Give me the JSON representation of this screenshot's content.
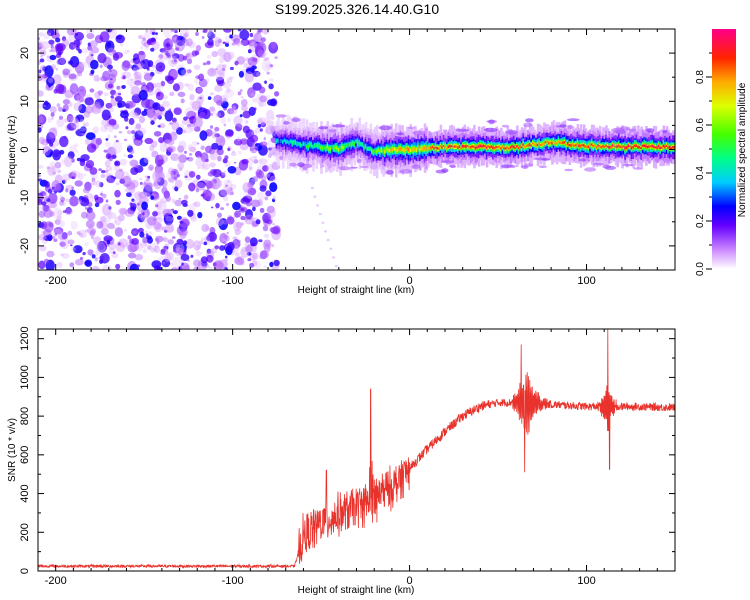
{
  "title": "S199.2025.326.14.40.G10",
  "chart_data": [
    {
      "type": "heatmap",
      "name": "spectrogram",
      "xlabel": "Height of straight line (km)",
      "ylabel": "Frequency (Hz)",
      "xlim": [
        -210,
        150
      ],
      "ylim": [
        -25,
        25
      ],
      "xticks": [
        -200,
        -100,
        0,
        100
      ],
      "yticks": [
        -20,
        -10,
        0,
        10,
        20
      ],
      "colorbar": {
        "label": "Normalized spectral amplitude",
        "range": [
          0.0,
          1.0
        ],
        "ticks": [
          0.0,
          0.2,
          0.4,
          0.6,
          0.8
        ]
      },
      "noise_region_x": [
        -210,
        -75
      ],
      "signal_band": [
        {
          "x": -75,
          "freq": 1.5,
          "amp": 0.35
        },
        {
          "x": -70,
          "freq": 1.8,
          "amp": 0.4
        },
        {
          "x": -60,
          "freq": 1.0,
          "amp": 0.45
        },
        {
          "x": -50,
          "freq": 0.5,
          "amp": 0.55
        },
        {
          "x": -40,
          "freq": 0.2,
          "amp": 0.6
        },
        {
          "x": -30,
          "freq": 1.5,
          "amp": 0.5
        },
        {
          "x": -20,
          "freq": -0.5,
          "amp": 0.55
        },
        {
          "x": -10,
          "freq": 0.0,
          "amp": 0.7
        },
        {
          "x": 0,
          "freq": 0.0,
          "amp": 0.75
        },
        {
          "x": 20,
          "freq": 0.5,
          "amp": 0.85
        },
        {
          "x": 40,
          "freq": 0.5,
          "amp": 0.9
        },
        {
          "x": 60,
          "freq": 0.5,
          "amp": 0.85
        },
        {
          "x": 80,
          "freq": 1.5,
          "amp": 0.8
        },
        {
          "x": 100,
          "freq": 0.8,
          "amp": 0.85
        },
        {
          "x": 120,
          "freq": 0.5,
          "amp": 0.9
        },
        {
          "x": 150,
          "freq": 0.5,
          "amp": 0.9
        }
      ]
    },
    {
      "type": "line",
      "name": "snr",
      "xlabel": "Height of straight line (km)",
      "ylabel": "SNR (10 * v/v)",
      "xlim": [
        -210,
        150
      ],
      "ylim": [
        0,
        1250
      ],
      "xticks": [
        -200,
        -100,
        0,
        100
      ],
      "yticks": [
        0,
        200,
        400,
        600,
        800,
        1000,
        1200
      ],
      "color": "#e8322b",
      "trend": [
        {
          "x": -210,
          "y": 25
        },
        {
          "x": -65,
          "y": 25
        },
        {
          "x": -60,
          "y": 180
        },
        {
          "x": -50,
          "y": 250
        },
        {
          "x": -40,
          "y": 290
        },
        {
          "x": -30,
          "y": 330
        },
        {
          "x": -20,
          "y": 380
        },
        {
          "x": -10,
          "y": 430
        },
        {
          "x": 0,
          "y": 530
        },
        {
          "x": 10,
          "y": 630
        },
        {
          "x": 20,
          "y": 720
        },
        {
          "x": 30,
          "y": 800
        },
        {
          "x": 40,
          "y": 850
        },
        {
          "x": 50,
          "y": 870
        },
        {
          "x": 60,
          "y": 870
        },
        {
          "x": 80,
          "y": 860
        },
        {
          "x": 100,
          "y": 850
        },
        {
          "x": 120,
          "y": 850
        },
        {
          "x": 150,
          "y": 845
        }
      ],
      "spikes": [
        {
          "x": -47,
          "y": 520
        },
        {
          "x": -22,
          "y": 940
        },
        {
          "x": -20,
          "y": 300
        },
        {
          "x": 63,
          "y": 1170
        },
        {
          "x": 65,
          "y": 510
        },
        {
          "x": 112,
          "y": 1250
        },
        {
          "x": 113,
          "y": 525
        }
      ]
    }
  ]
}
